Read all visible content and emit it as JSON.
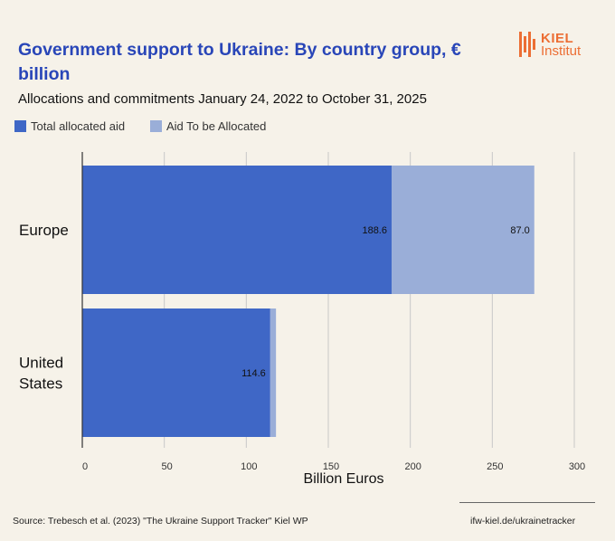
{
  "header": {
    "title": "Government support to Ukraine: By country group, € billion",
    "subtitle": "Allocations and commitments January 24, 2022 to October 31, 2025"
  },
  "logo": {
    "line1": "KIEL",
    "line2": "Institut",
    "color": "#ec6e34"
  },
  "legend": [
    {
      "label": "Total allocated aid",
      "color": "#3f67c6"
    },
    {
      "label": "Aid To be Allocated",
      "color": "#9aaed8"
    }
  ],
  "chart_data": {
    "type": "bar",
    "orientation": "horizontal",
    "stacked": true,
    "categories": [
      "Europe",
      "United States"
    ],
    "series": [
      {
        "name": "Total allocated aid",
        "values": [
          188.6,
          114.6
        ],
        "color": "#3f67c6"
      },
      {
        "name": "Aid To be Allocated",
        "values": [
          87.0,
          3.5
        ],
        "color": "#9aaed8"
      }
    ],
    "data_labels": [
      [
        "188.6",
        "114.6"
      ],
      [
        "87.0",
        ""
      ]
    ],
    "xlim": [
      0,
      300
    ],
    "xticks": [
      0,
      50,
      100,
      150,
      200,
      250,
      300
    ],
    "xlabel": "Billion Euros",
    "grid": "vertical",
    "legend_position": "top-left"
  },
  "footer": {
    "source": "Source: Trebesch et al. (2023) \"The Ukraine Support Tracker\" Kiel WP",
    "url": "ifw-kiel.de/ukrainetracker"
  }
}
